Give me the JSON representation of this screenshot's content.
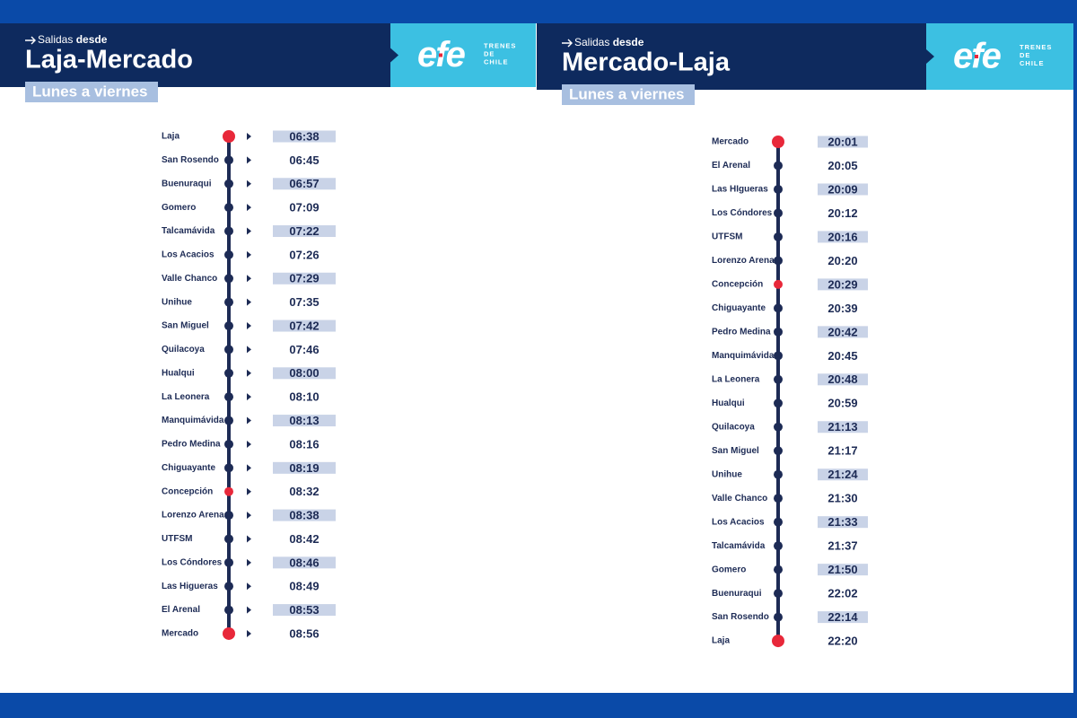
{
  "panels": [
    {
      "header": {
        "prefix": "Salidas",
        "bold": "desde",
        "route": "Laja-Mercado",
        "days": "Lunes a viernes"
      },
      "logo": {
        "brand": "efe",
        "tagline": [
          "TRENES",
          "DE",
          "CHILE"
        ]
      },
      "stops": [
        {
          "station": "Laja",
          "time": "06:38",
          "dot_color": "#e8283a"
        },
        {
          "station": "San Rosendo",
          "time": "06:45",
          "dot_color": "#1d2b55"
        },
        {
          "station": "Buenuraqui",
          "time": "06:57",
          "dot_color": "#1d2b55"
        },
        {
          "station": "Gomero",
          "time": "07:09",
          "dot_color": "#1d2b55"
        },
        {
          "station": "Talcamávida",
          "time": "07:22",
          "dot_color": "#1d2b55"
        },
        {
          "station": "Los Acacios",
          "time": "07:26",
          "dot_color": "#1d2b55"
        },
        {
          "station": "Valle Chanco",
          "time": "07:29",
          "dot_color": "#1d2b55"
        },
        {
          "station": "Unihue",
          "time": "07:35",
          "dot_color": "#1d2b55"
        },
        {
          "station": "San Miguel",
          "time": "07:42",
          "dot_color": "#1d2b55"
        },
        {
          "station": "Quilacoya",
          "time": "07:46",
          "dot_color": "#1d2b55"
        },
        {
          "station": "Hualqui",
          "time": "08:00",
          "dot_color": "#1d2b55"
        },
        {
          "station": "La Leonera",
          "time": "08:10",
          "dot_color": "#1d2b55"
        },
        {
          "station": "Manquimávida",
          "time": "08:13",
          "dot_color": "#1d2b55"
        },
        {
          "station": "Pedro Medina",
          "time": "08:16",
          "dot_color": "#1d2b55"
        },
        {
          "station": "Chiguayante",
          "time": "08:19",
          "dot_color": "#1d2b55"
        },
        {
          "station": "Concepción",
          "time": "08:32",
          "dot_color": "#e8283a"
        },
        {
          "station": "Lorenzo Arenas",
          "time": "08:38",
          "dot_color": "#1d2b55"
        },
        {
          "station": "UTFSM",
          "time": "08:42",
          "dot_color": "#1d2b55"
        },
        {
          "station": "Los Cóndores",
          "time": "08:46",
          "dot_color": "#1d2b55"
        },
        {
          "station": "Las Higueras",
          "time": "08:49",
          "dot_color": "#1d2b55"
        },
        {
          "station": "El Arenal",
          "time": "08:53",
          "dot_color": "#1d2b55"
        },
        {
          "station": "Mercado",
          "time": "08:56",
          "dot_color": "#e8283a"
        }
      ]
    },
    {
      "header": {
        "prefix": "Salidas",
        "bold": "desde",
        "route": "Mercado-Laja",
        "days": "Lunes a viernes"
      },
      "logo": {
        "brand": "efe",
        "tagline": [
          "TRENES",
          "DE",
          "CHILE"
        ]
      },
      "stops": [
        {
          "station": "Mercado",
          "time": "20:01",
          "dot_color": "#e8283a"
        },
        {
          "station": "El Arenal",
          "time": "20:05",
          "dot_color": "#1d2b55"
        },
        {
          "station": "Las HIgueras",
          "time": "20:09",
          "dot_color": "#1d2b55"
        },
        {
          "station": "Los Cóndores",
          "time": "20:12",
          "dot_color": "#1d2b55"
        },
        {
          "station": "UTFSM",
          "time": "20:16",
          "dot_color": "#1d2b55"
        },
        {
          "station": "Lorenzo Arenas",
          "time": "20:20",
          "dot_color": "#1d2b55"
        },
        {
          "station": "Concepción",
          "time": "20:29",
          "dot_color": "#e8283a"
        },
        {
          "station": "Chiguayante",
          "time": "20:39",
          "dot_color": "#1d2b55"
        },
        {
          "station": "Pedro Medina",
          "time": "20:42",
          "dot_color": "#1d2b55"
        },
        {
          "station": "Manquimávida",
          "time": "20:45",
          "dot_color": "#1d2b55"
        },
        {
          "station": "La Leonera",
          "time": "20:48",
          "dot_color": "#1d2b55"
        },
        {
          "station": "Hualqui",
          "time": "20:59",
          "dot_color": "#1d2b55"
        },
        {
          "station": "Quilacoya",
          "time": "21:13",
          "dot_color": "#1d2b55"
        },
        {
          "station": "San Miguel",
          "time": "21:17",
          "dot_color": "#1d2b55"
        },
        {
          "station": "Unihue",
          "time": "21:24",
          "dot_color": "#1d2b55"
        },
        {
          "station": "Valle Chanco",
          "time": "21:30",
          "dot_color": "#1d2b55"
        },
        {
          "station": "Los Acacios",
          "time": "21:33",
          "dot_color": "#1d2b55"
        },
        {
          "station": "Talcamávida",
          "time": "21:37",
          "dot_color": "#1d2b55"
        },
        {
          "station": "Gomero",
          "time": "21:50",
          "dot_color": "#1d2b55"
        },
        {
          "station": "Buenuraqui",
          "time": "22:02",
          "dot_color": "#1d2b55"
        },
        {
          "station": "San Rosendo",
          "time": "22:14",
          "dot_color": "#1d2b55"
        },
        {
          "station": "Laja",
          "time": "22:20",
          "dot_color": "#e8283a"
        }
      ]
    }
  ]
}
